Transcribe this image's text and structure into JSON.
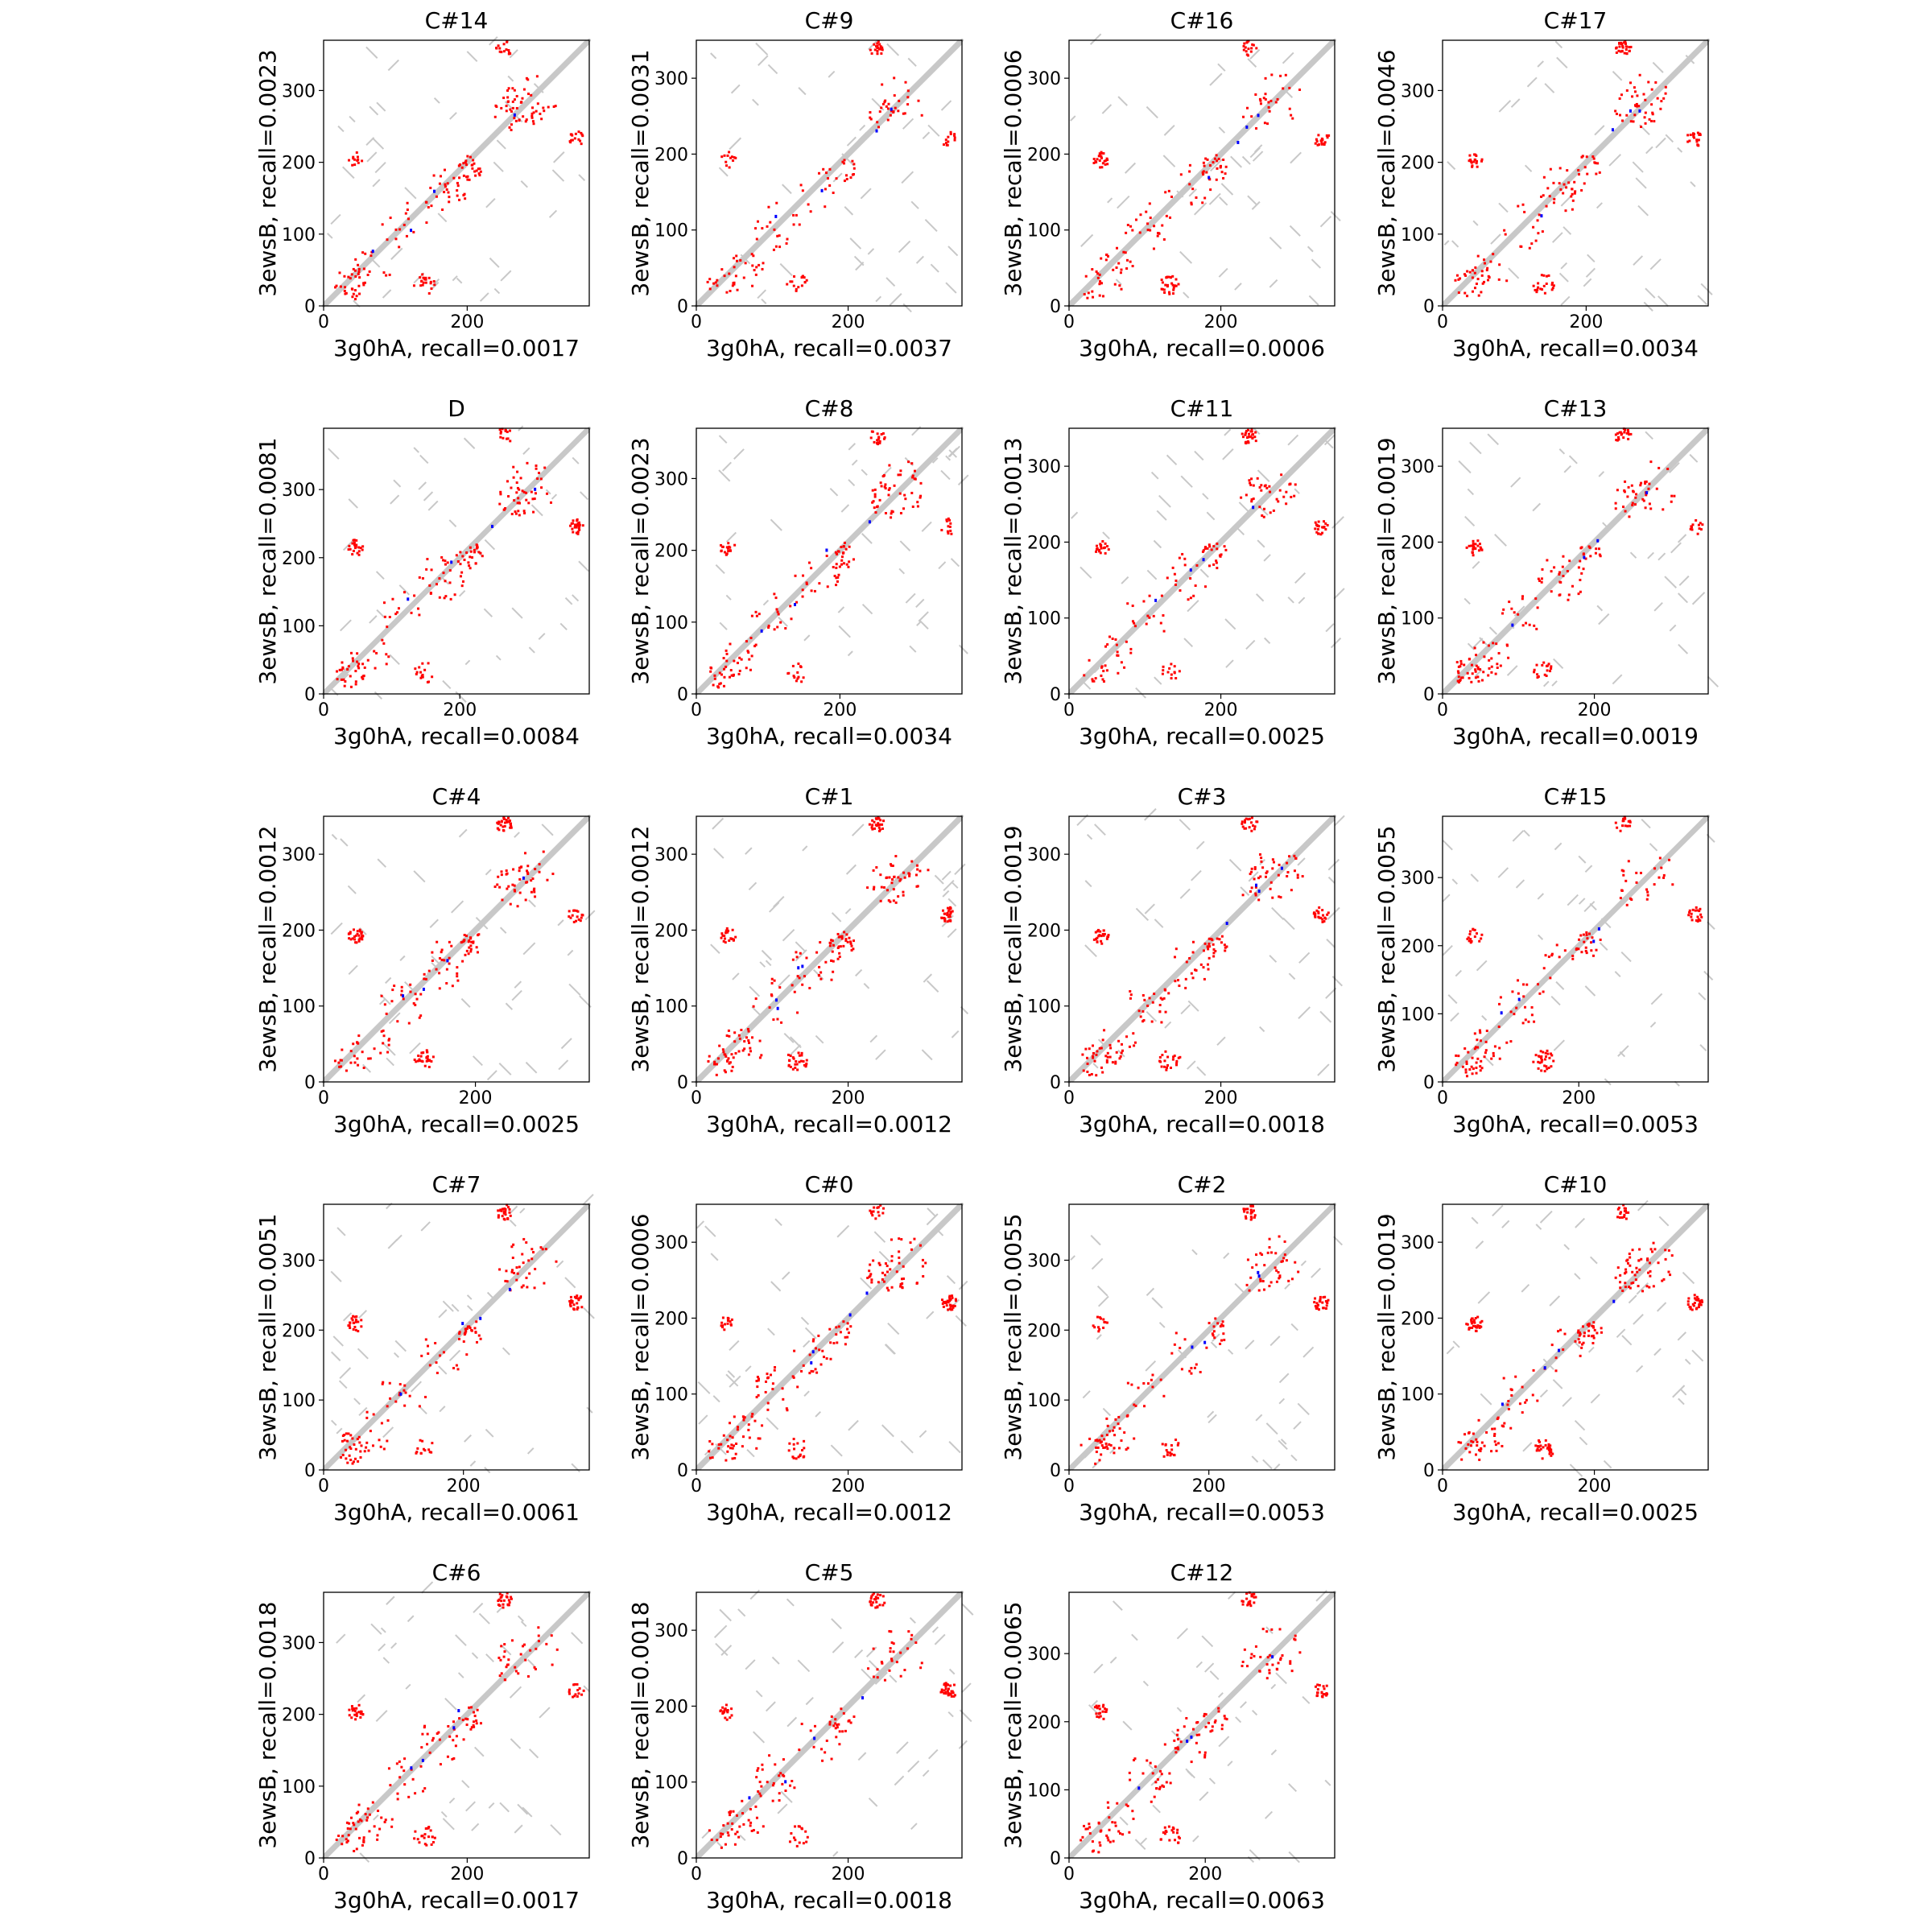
{
  "figure": {
    "columns": 4
  },
  "colors": {
    "contact": "#ff0000",
    "overlap": "#0000ff",
    "other": "#00a000",
    "native": "#c8c8c8",
    "frame": "#000000"
  },
  "chart_data": [
    {
      "type": "scatter",
      "title": "C#14",
      "xlabel": "3g0hA, recall=0.0017",
      "ylabel": "3ewsB, recall=0.0023",
      "xmax": 370,
      "ymax": 370,
      "xticks": [
        0,
        200
      ],
      "yticks": [
        0,
        100,
        200,
        300
      ]
    },
    {
      "type": "scatter",
      "title": "C#9",
      "xlabel": "3g0hA, recall=0.0037",
      "ylabel": "3ewsB, recall=0.0031",
      "xmax": 350,
      "ymax": 350,
      "xticks": [
        0,
        200
      ],
      "yticks": [
        0,
        100,
        200,
        300
      ]
    },
    {
      "type": "scatter",
      "title": "C#16",
      "xlabel": "3g0hA, recall=0.0006",
      "ylabel": "3ewsB, recall=0.0006",
      "xmax": 350,
      "ymax": 350,
      "xticks": [
        0,
        200
      ],
      "yticks": [
        0,
        100,
        200,
        300
      ]
    },
    {
      "type": "scatter",
      "title": "C#17",
      "xlabel": "3g0hA, recall=0.0034",
      "ylabel": "3ewsB, recall=0.0046",
      "xmax": 370,
      "ymax": 370,
      "xticks": [
        0,
        200
      ],
      "yticks": [
        0,
        100,
        200,
        300
      ]
    },
    {
      "type": "scatter",
      "title": "D",
      "xlabel": "3g0hA, recall=0.0084",
      "ylabel": "3ewsB, recall=0.0081",
      "xmax": 390,
      "ymax": 390,
      "xticks": [
        0,
        200
      ],
      "yticks": [
        0,
        100,
        200,
        300
      ]
    },
    {
      "type": "scatter",
      "title": "C#8",
      "xlabel": "3g0hA, recall=0.0034",
      "ylabel": "3ewsB, recall=0.0023",
      "xmax": 370,
      "ymax": 370,
      "xticks": [
        0,
        200
      ],
      "yticks": [
        0,
        100,
        200,
        300
      ]
    },
    {
      "type": "scatter",
      "title": "C#11",
      "xlabel": "3g0hA, recall=0.0025",
      "ylabel": "3ewsB, recall=0.0013",
      "xmax": 350,
      "ymax": 350,
      "xticks": [
        0,
        200
      ],
      "yticks": [
        0,
        100,
        200,
        300
      ]
    },
    {
      "type": "scatter",
      "title": "C#13",
      "xlabel": "3g0hA, recall=0.0019",
      "ylabel": "3ewsB, recall=0.0019",
      "xmax": 350,
      "ymax": 350,
      "xticks": [
        0,
        200
      ],
      "yticks": [
        0,
        100,
        200,
        300
      ]
    },
    {
      "type": "scatter",
      "title": "C#4",
      "xlabel": "3g0hA, recall=0.0025",
      "ylabel": "3ewsB, recall=0.0012",
      "xmax": 350,
      "ymax": 350,
      "xticks": [
        0,
        200
      ],
      "yticks": [
        0,
        100,
        200,
        300
      ]
    },
    {
      "type": "scatter",
      "title": "C#1",
      "xlabel": "3g0hA, recall=0.0012",
      "ylabel": "3ewsB, recall=0.0012",
      "xmax": 350,
      "ymax": 350,
      "xticks": [
        0,
        200
      ],
      "yticks": [
        0,
        100,
        200,
        300
      ]
    },
    {
      "type": "scatter",
      "title": "C#3",
      "xlabel": "3g0hA, recall=0.0018",
      "ylabel": "3ewsB, recall=0.0019",
      "xmax": 350,
      "ymax": 350,
      "xticks": [
        0,
        200
      ],
      "yticks": [
        0,
        100,
        200,
        300
      ]
    },
    {
      "type": "scatter",
      "title": "C#15",
      "xlabel": "3g0hA, recall=0.0053",
      "ylabel": "3ewsB, recall=0.0055",
      "xmax": 390,
      "ymax": 390,
      "xticks": [
        0,
        200
      ],
      "yticks": [
        0,
        100,
        200,
        300
      ]
    },
    {
      "type": "scatter",
      "title": "C#7",
      "xlabel": "3g0hA, recall=0.0061",
      "ylabel": "3ewsB, recall=0.0051",
      "xmax": 380,
      "ymax": 380,
      "xticks": [
        0,
        200
      ],
      "yticks": [
        0,
        100,
        200,
        300
      ]
    },
    {
      "type": "scatter",
      "title": "C#0",
      "xlabel": "3g0hA, recall=0.0012",
      "ylabel": "3ewsB, recall=0.0006",
      "xmax": 350,
      "ymax": 350,
      "xticks": [
        0,
        200
      ],
      "yticks": [
        0,
        100,
        200,
        300
      ]
    },
    {
      "type": "scatter",
      "title": "C#2",
      "xlabel": "3g0hA, recall=0.0053",
      "ylabel": "3ewsB, recall=0.0055",
      "xmax": 380,
      "ymax": 380,
      "xticks": [
        0,
        200
      ],
      "yticks": [
        0,
        100,
        200,
        300
      ]
    },
    {
      "type": "scatter",
      "title": "C#10",
      "xlabel": "3g0hA, recall=0.0025",
      "ylabel": "3ewsB, recall=0.0019",
      "xmax": 350,
      "ymax": 350,
      "xticks": [
        0,
        200
      ],
      "yticks": [
        0,
        100,
        200,
        300
      ]
    },
    {
      "type": "scatter",
      "title": "C#6",
      "xlabel": "3g0hA, recall=0.0017",
      "ylabel": "3ewsB, recall=0.0018",
      "xmax": 370,
      "ymax": 370,
      "xticks": [
        0,
        200
      ],
      "yticks": [
        0,
        100,
        200,
        300
      ]
    },
    {
      "type": "scatter",
      "title": "C#5",
      "xlabel": "3g0hA, recall=0.0018",
      "ylabel": "3ewsB, recall=0.0018",
      "xmax": 350,
      "ymax": 350,
      "xticks": [
        0,
        200
      ],
      "yticks": [
        0,
        100,
        200,
        300
      ]
    },
    {
      "type": "scatter",
      "title": "C#12",
      "xlabel": "3g0hA, recall=0.0063",
      "ylabel": "3ewsB, recall=0.0065",
      "xmax": 390,
      "ymax": 390,
      "xticks": [
        0,
        200
      ],
      "yticks": [
        0,
        100,
        200,
        300
      ]
    }
  ]
}
